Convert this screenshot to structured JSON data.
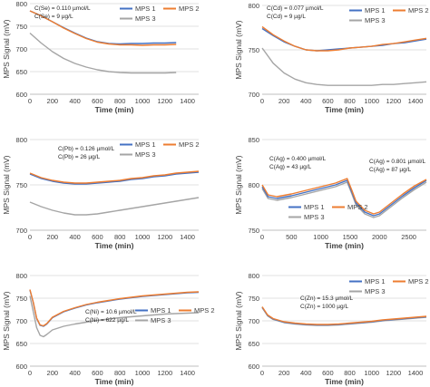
{
  "figure": {
    "line_colors": {
      "MPS 1": "#4472C4",
      "MPS 2": "#ED7D31",
      "MPS 3": "#A5A5A5"
    }
  },
  "chart_data": [
    {
      "id": "se",
      "type": "line",
      "xlabel": "Time (min)",
      "ylabel": "MPS Signal (mV)",
      "xlim": [
        0,
        1500
      ],
      "ylim": [
        600,
        800
      ],
      "xticks": [
        0,
        200,
        400,
        600,
        800,
        1000,
        1200,
        1400
      ],
      "yticks": [
        600,
        650,
        700,
        750,
        800
      ],
      "annotations": [
        "C(Se) = 0.110 µmol/L",
        "C(Se) = 9 µg/L"
      ],
      "legend": {
        "entries": [
          "MPS 1",
          "MPS 2",
          "MPS 3"
        ],
        "placement": "top-center"
      },
      "series": [
        {
          "name": "MPS 1",
          "x": [
            0,
            100,
            200,
            300,
            400,
            500,
            600,
            700,
            800,
            900,
            1000,
            1100,
            1200,
            1300
          ],
          "y": [
            784,
            773,
            760,
            747,
            735,
            724,
            716,
            712,
            711,
            712,
            712,
            713,
            713,
            714
          ]
        },
        {
          "name": "MPS 2",
          "x": [
            0,
            100,
            200,
            300,
            400,
            500,
            600,
            700,
            800,
            900,
            1000,
            1100,
            1200,
            1300
          ],
          "y": [
            784,
            773,
            760,
            746,
            734,
            723,
            715,
            711,
            709,
            709,
            708,
            709,
            709,
            710
          ]
        },
        {
          "name": "MPS 3",
          "x": [
            0,
            100,
            200,
            300,
            400,
            500,
            600,
            700,
            800,
            900,
            1000,
            1100,
            1200,
            1300
          ],
          "y": [
            735,
            713,
            694,
            679,
            668,
            660,
            654,
            650,
            648,
            647,
            647,
            647,
            647,
            648
          ]
        }
      ]
    },
    {
      "id": "cd",
      "type": "line",
      "xlabel": "Time (min)",
      "ylabel": "MPS Signal (mV)",
      "xlim": [
        0,
        1500
      ],
      "ylim": [
        700,
        800
      ],
      "xticks": [
        0,
        200,
        400,
        600,
        800,
        1000,
        1200,
        1400
      ],
      "yticks": [
        700,
        750,
        800
      ],
      "annotations": [
        "C(Cd) = 0.077 µmol/L",
        "C(Cd) = 9 µg/L"
      ],
      "legend": {
        "entries": [
          "MPS 1",
          "MPS 2",
          "MPS 3"
        ],
        "placement": "top-center"
      },
      "series": [
        {
          "name": "MPS 1",
          "x": [
            0,
            100,
            200,
            300,
            400,
            500,
            600,
            700,
            800,
            900,
            1000,
            1100,
            1200,
            1300,
            1400,
            1500
          ],
          "y": [
            774,
            766,
            759,
            754,
            750,
            749,
            750,
            751,
            752,
            753,
            754,
            755,
            757,
            758,
            760,
            762
          ]
        },
        {
          "name": "MPS 2",
          "x": [
            0,
            100,
            200,
            300,
            400,
            500,
            600,
            700,
            800,
            900,
            1000,
            1100,
            1200,
            1300,
            1400,
            1500
          ],
          "y": [
            776,
            767,
            760,
            754,
            750,
            749,
            749,
            750,
            752,
            753,
            754,
            756,
            757,
            759,
            761,
            763
          ]
        },
        {
          "name": "MPS 3",
          "x": [
            0,
            100,
            200,
            300,
            400,
            500,
            600,
            700,
            800,
            900,
            1000,
            1100,
            1200,
            1300,
            1400,
            1500
          ],
          "y": [
            752,
            735,
            724,
            717,
            713,
            711,
            710,
            710,
            710,
            710,
            710,
            711,
            711,
            712,
            713,
            714
          ]
        }
      ]
    },
    {
      "id": "pb",
      "type": "line",
      "xlabel": "Time (min)",
      "ylabel": "MPS Signal (mV)",
      "xlim": [
        0,
        1500
      ],
      "ylim": [
        700,
        800
      ],
      "xticks": [
        0,
        200,
        400,
        600,
        800,
        1000,
        1200,
        1400
      ],
      "yticks": [
        700,
        750,
        800
      ],
      "annotations": [
        "C(Pb) = 0.126 µmol/L",
        "C(Pb) = 26 µg/L"
      ],
      "legend": {
        "entries": [
          "MPS 1",
          "MPS 2",
          "MPS 3"
        ],
        "placement": "top-center"
      },
      "series": [
        {
          "name": "MPS 1",
          "x": [
            0,
            100,
            200,
            300,
            400,
            500,
            600,
            700,
            800,
            900,
            1000,
            1100,
            1200,
            1300,
            1400,
            1500
          ],
          "y": [
            762,
            757,
            754,
            752,
            751,
            751,
            752,
            753,
            754,
            756,
            757,
            759,
            760,
            762,
            763,
            764
          ]
        },
        {
          "name": "MPS 2",
          "x": [
            0,
            100,
            200,
            300,
            400,
            500,
            600,
            700,
            800,
            900,
            1000,
            1100,
            1200,
            1300,
            1400,
            1500
          ],
          "y": [
            763,
            758,
            755,
            753,
            752,
            752,
            753,
            754,
            755,
            757,
            758,
            760,
            761,
            763,
            764,
            765
          ]
        },
        {
          "name": "MPS 3",
          "x": [
            0,
            100,
            200,
            300,
            400,
            500,
            600,
            700,
            800,
            900,
            1000,
            1100,
            1200,
            1300,
            1400,
            1500
          ],
          "y": [
            731,
            726,
            722,
            719,
            717,
            717,
            718,
            720,
            722,
            724,
            726,
            728,
            730,
            732,
            734,
            736
          ]
        }
      ]
    },
    {
      "id": "ag",
      "type": "line",
      "xlabel": "Time (min)",
      "ylabel": "MPS Signal (mV)",
      "xlim": [
        0,
        2800
      ],
      "ylim": [
        750,
        850
      ],
      "xticks": [
        0,
        500,
        1000,
        1500,
        2000,
        2500
      ],
      "yticks": [
        750,
        800,
        850
      ],
      "annotations": [
        "C(Ag) = 0.400 µmol/L",
        "C(Ag) = 43 µg/L",
        "C(Ag) = 0.801 µmol/L",
        "C(Ag) = 87 µg/L"
      ],
      "legend": {
        "entries": [
          "MPS 1",
          "MPS 2",
          "MPS 3"
        ],
        "placement": "bottom-center"
      },
      "series": [
        {
          "name": "MPS 1",
          "x": [
            0,
            100,
            250,
            500,
            750,
            1000,
            1250,
            1450,
            1530,
            1600,
            1750,
            1900,
            2000,
            2200,
            2400,
            2600,
            2800
          ],
          "y": [
            798,
            787,
            785,
            788,
            792,
            796,
            800,
            805,
            792,
            780,
            770,
            766,
            768,
            778,
            788,
            797,
            805
          ]
        },
        {
          "name": "MPS 2",
          "x": [
            0,
            100,
            250,
            500,
            750,
            1000,
            1250,
            1450,
            1530,
            1600,
            1750,
            1900,
            2000,
            2200,
            2400,
            2600,
            2800
          ],
          "y": [
            800,
            789,
            787,
            790,
            794,
            798,
            802,
            807,
            794,
            782,
            772,
            768,
            770,
            780,
            790,
            799,
            806
          ]
        },
        {
          "name": "MPS 3",
          "x": [
            0,
            100,
            250,
            500,
            750,
            1000,
            1250,
            1450,
            1530,
            1600,
            1750,
            1900,
            2000,
            2200,
            2400,
            2600,
            2800
          ],
          "y": [
            796,
            785,
            783,
            786,
            790,
            794,
            798,
            803,
            790,
            778,
            768,
            764,
            766,
            776,
            786,
            795,
            803
          ]
        }
      ]
    },
    {
      "id": "ni",
      "type": "line",
      "xlabel": "Time (min)",
      "ylabel": "MPS Signal (mV)",
      "xlim": [
        0,
        1500
      ],
      "ylim": [
        600,
        800
      ],
      "xticks": [
        0,
        200,
        400,
        600,
        800,
        1000,
        1200,
        1400
      ],
      "yticks": [
        600,
        650,
        700,
        750,
        800
      ],
      "annotations": [
        "C(Ni) = 10.6 µmol/L",
        "C(Ni) = 622 µg/L"
      ],
      "legend": {
        "entries": [
          "MPS 1",
          "MPS 2",
          "MPS 3"
        ],
        "placement": "bottom-right"
      },
      "series": [
        {
          "name": "MPS 1",
          "x": [
            0,
            30,
            60,
            90,
            120,
            150,
            200,
            300,
            400,
            500,
            600,
            700,
            800,
            900,
            1000,
            1100,
            1200,
            1300,
            1400,
            1500
          ],
          "y": [
            768,
            740,
            705,
            690,
            688,
            693,
            707,
            720,
            728,
            735,
            740,
            744,
            748,
            751,
            754,
            756,
            758,
            760,
            762,
            763
          ]
        },
        {
          "name": "MPS 2",
          "x": [
            0,
            30,
            60,
            90,
            120,
            150,
            200,
            300,
            400,
            500,
            600,
            700,
            800,
            900,
            1000,
            1100,
            1200,
            1300,
            1400,
            1500
          ],
          "y": [
            769,
            741,
            706,
            691,
            689,
            694,
            708,
            721,
            729,
            736,
            741,
            745,
            749,
            752,
            755,
            757,
            759,
            761,
            763,
            764
          ]
        },
        {
          "name": "MPS 3",
          "x": [
            0,
            30,
            60,
            90,
            120,
            150,
            200,
            300,
            400,
            500,
            600,
            700,
            800,
            900,
            1000,
            1100,
            1200,
            1300,
            1400,
            1500
          ],
          "y": [
            755,
            720,
            685,
            668,
            665,
            670,
            680,
            688,
            693,
            697,
            701,
            704,
            707,
            709,
            711,
            713,
            715,
            716,
            717,
            718
          ]
        }
      ]
    },
    {
      "id": "zn",
      "type": "line",
      "xlabel": "Time (min)",
      "ylabel": "MPS Signal (mV)",
      "xlim": [
        0,
        1500
      ],
      "ylim": [
        600,
        800
      ],
      "xticks": [
        0,
        200,
        400,
        600,
        800,
        1000,
        1200,
        1400
      ],
      "yticks": [
        600,
        650,
        700,
        750,
        800
      ],
      "annotations": [
        "C(Zn) = 15.3 µmol/L",
        "C(Zn) = 1000 µg/L"
      ],
      "legend": {
        "entries": [
          "MPS 1",
          "MPS 2",
          "MPS 3"
        ],
        "placement": "top-right"
      },
      "series": [
        {
          "name": "MPS 1",
          "x": [
            0,
            50,
            100,
            200,
            300,
            400,
            500,
            600,
            700,
            800,
            900,
            1000,
            1100,
            1200,
            1300,
            1400,
            1500
          ],
          "y": [
            730,
            712,
            704,
            697,
            694,
            692,
            691,
            691,
            692,
            694,
            696,
            698,
            701,
            703,
            705,
            707,
            709
          ]
        },
        {
          "name": "MPS 2",
          "x": [
            0,
            50,
            100,
            200,
            300,
            400,
            500,
            600,
            700,
            800,
            900,
            1000,
            1100,
            1200,
            1300,
            1400,
            1500
          ],
          "y": [
            731,
            713,
            705,
            698,
            695,
            693,
            692,
            692,
            693,
            695,
            697,
            699,
            702,
            704,
            706,
            708,
            710
          ]
        },
        {
          "name": "MPS 3",
          "x": [
            0,
            50,
            100,
            200,
            300,
            400,
            500,
            600,
            700,
            800,
            900,
            1000,
            1100,
            1200,
            1300,
            1400,
            1500
          ],
          "y": [
            729,
            711,
            703,
            696,
            693,
            691,
            690,
            690,
            691,
            693,
            695,
            697,
            700,
            702,
            704,
            706,
            708
          ]
        }
      ]
    }
  ]
}
